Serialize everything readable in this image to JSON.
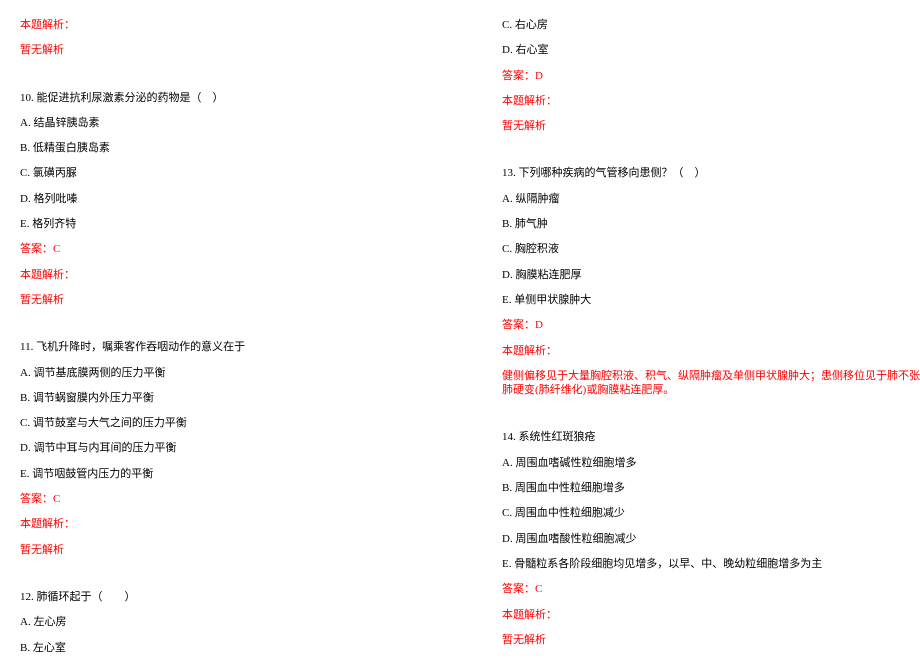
{
  "left": {
    "analysis9_label": "本题解析：",
    "analysis9_text": "暂无解析",
    "q10_text": "10. 能促进抗利尿激素分泌的药物是（　）",
    "q10_a": "A. 结晶锌胰岛素",
    "q10_b": "B. 低精蛋白胰岛素",
    "q10_c": "C. 氯磺丙脲",
    "q10_d": "D. 格列吡嗪",
    "q10_e": "E. 格列齐特",
    "q10_answer": "答案：C",
    "q10_analysis_label": "本题解析：",
    "q10_analysis_text": "暂无解析",
    "q11_text": "11. 飞机升降时，嘱乘客作吞咽动作的意义在于",
    "q11_a": "A. 调节基底膜两侧的压力平衡",
    "q11_b": "B. 调节蜗窗膜内外压力平衡",
    "q11_c": "C. 调节鼓室与大气之间的压力平衡",
    "q11_d": "D. 调节中耳与内耳间的压力平衡",
    "q11_e": "E. 调节咽鼓管内压力的平衡",
    "q11_answer": "答案：C",
    "q11_analysis_label": "本题解析：",
    "q11_analysis_text": "暂无解析",
    "q12_text": "12. 肺循环起于（　　）",
    "q12_a": "A. 左心房",
    "q12_b": "B. 左心室"
  },
  "right": {
    "q12_c": "C. 右心房",
    "q12_d": "D. 右心室",
    "q12_answer": "答案：D",
    "q12_analysis_label": "本题解析：",
    "q12_analysis_text": "暂无解析",
    "q13_text": "13. 下列哪种疾病的气管移向患侧？（　）",
    "q13_a": "A. 纵隔肿瘤",
    "q13_b": "B. 肺气肿",
    "q13_c": "C. 胸腔积液",
    "q13_d": "D. 胸膜粘连肥厚",
    "q13_e": "E. 单侧甲状腺肿大",
    "q13_answer": "答案：D",
    "q13_analysis_label": "本题解析：",
    "q13_analysis_text": "健侧偏移见于大量胸腔积液、积气、纵隔肿瘤及单侧甲状腺肿大；患侧移位见于肺不张、肺硬变(肺纤维化)或胸膜粘连肥厚。",
    "q14_text": "14. 系统性红斑狼疮",
    "q14_a": "A. 周围血嗜碱性粒细胞增多",
    "q14_b": "B. 周围血中性粒细胞增多",
    "q14_c": "C. 周围血中性粒细胞减少",
    "q14_d": "D. 周围血嗜酸性粒细胞减少",
    "q14_e": "E. 骨髓粒系各阶段细胞均见增多，以早、中、晚幼粒细胞增多为主",
    "q14_answer": "答案：C",
    "q14_analysis_label": "本题解析：",
    "q14_analysis_text": "暂无解析"
  }
}
